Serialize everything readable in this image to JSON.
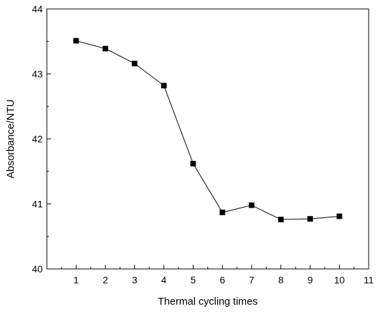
{
  "chart_data": {
    "type": "line",
    "title": "",
    "xlabel": "Thermal cycling times",
    "ylabel": "Absorbance/NTU",
    "xlim": [
      0,
      11
    ],
    "ylim": [
      40,
      44
    ],
    "xticks": [
      1,
      2,
      3,
      4,
      5,
      6,
      7,
      8,
      9,
      10,
      11
    ],
    "yticks": [
      40,
      41,
      42,
      43,
      44
    ],
    "grid": false,
    "marker": "square",
    "series": [
      {
        "x": [
          1,
          2,
          3,
          4,
          5,
          6,
          7,
          8,
          9,
          10
        ],
        "values": [
          43.51,
          43.39,
          43.16,
          42.82,
          41.62,
          40.87,
          40.98,
          40.76,
          40.77,
          40.81
        ]
      }
    ]
  }
}
